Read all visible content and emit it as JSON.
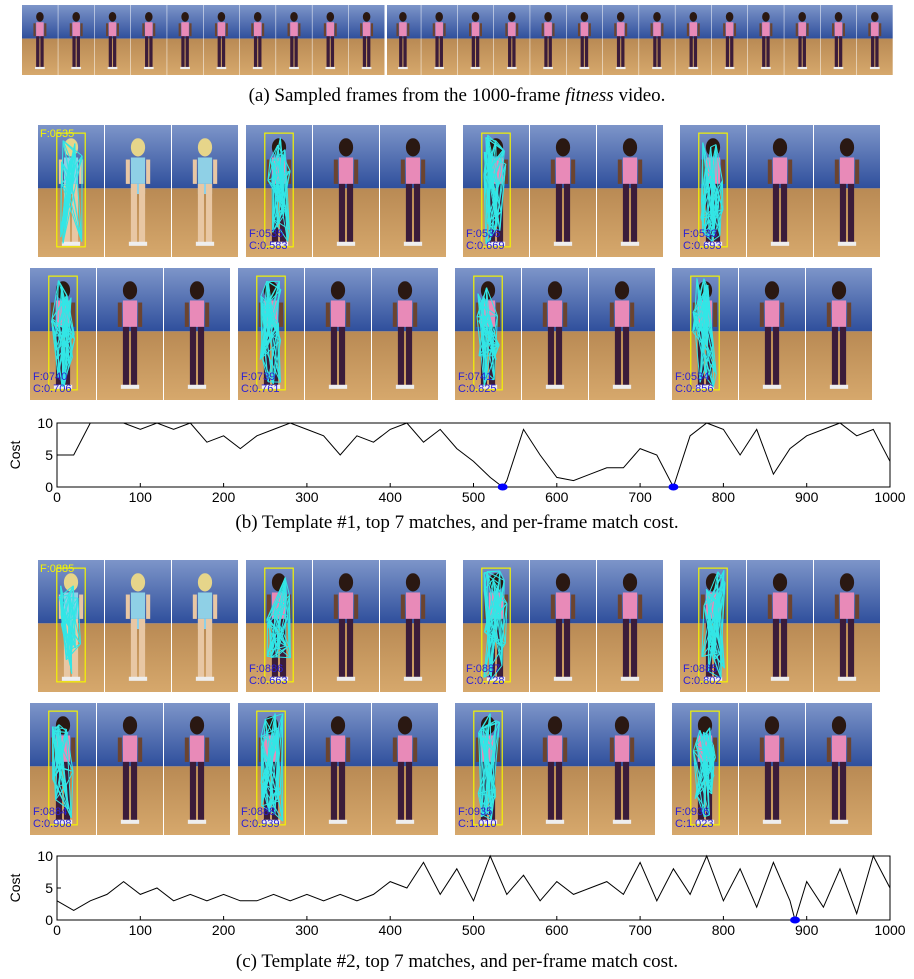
{
  "caption_a": {
    "before": "(a) Sampled frames from the 1000-frame ",
    "em": "fitness",
    "after": " video."
  },
  "panels": [
    {
      "template_label": "F:0535",
      "matches": [
        {
          "frame": "F:0535",
          "cost": "C:0.583"
        },
        {
          "frame": "F:0536",
          "cost": "C:0.669"
        },
        {
          "frame": "F:0533",
          "cost": "C:0.693"
        },
        {
          "frame": "F:0740",
          "cost": "C:0.706"
        },
        {
          "frame": "F:0739",
          "cost": "C:0.761"
        },
        {
          "frame": "F:0741",
          "cost": "C:0.825"
        },
        {
          "frame": "F:0534",
          "cost": "C:0.856"
        }
      ],
      "caption": "(b) Template #1, top 7 matches, and per-frame match cost.",
      "chart_data": {
        "type": "line",
        "ylabel": "Cost",
        "xlim": [
          0,
          1000
        ],
        "ylim": [
          0,
          10
        ],
        "xticks": [
          0,
          100,
          200,
          300,
          400,
          500,
          600,
          700,
          800,
          900,
          1000
        ],
        "yticks": [
          0,
          5,
          10
        ],
        "series": [
          {
            "color": "#000000",
            "x": [
              0,
              20,
              40,
              60,
              80,
              100,
              120,
              140,
              160,
              180,
              200,
              220,
              240,
              260,
              280,
              300,
              320,
              340,
              360,
              380,
              400,
              420,
              440,
              460,
              480,
              500,
              520,
              535,
              540,
              560,
              580,
              600,
              620,
              640,
              660,
              680,
              700,
              720,
              740,
              760,
              780,
              800,
              820,
              840,
              860,
              880,
              900,
              920,
              940,
              960,
              980,
              1000
            ],
            "values": [
              5,
              5,
              10,
              10,
              10,
              9,
              10,
              9,
              10,
              7,
              8,
              6,
              8,
              9,
              10,
              9,
              8,
              5,
              8,
              7,
              9,
              10,
              7,
              9,
              6,
              4,
              1.5,
              0,
              1,
              9,
              5,
              1.5,
              1,
              2,
              3,
              3,
              6,
              5,
              0,
              8,
              10,
              9,
              5,
              9,
              2,
              6,
              8,
              9,
              10,
              8,
              9,
              4
            ]
          }
        ],
        "markers": {
          "color": "#0000ff",
          "x": [
            535,
            740
          ],
          "values": [
            0,
            0
          ]
        }
      }
    },
    {
      "template_label": "F:0885",
      "matches": [
        {
          "frame": "F:0886",
          "cost": "C:0.663"
        },
        {
          "frame": "F:0887",
          "cost": "C:0.728"
        },
        {
          "frame": "F:0885",
          "cost": "C:0.802"
        },
        {
          "frame": "F:0884",
          "cost": "C:0.908"
        },
        {
          "frame": "F:0888",
          "cost": "C:0.939"
        },
        {
          "frame": "F:0935",
          "cost": "C:1.010"
        },
        {
          "frame": "F:0936",
          "cost": "C:1.023"
        }
      ],
      "caption": "(c) Template #2, top 7 matches, and per-frame match cost.",
      "chart_data": {
        "type": "line",
        "ylabel": "Cost",
        "xlim": [
          0,
          1000
        ],
        "ylim": [
          0,
          10
        ],
        "xticks": [
          0,
          100,
          200,
          300,
          400,
          500,
          600,
          700,
          800,
          900,
          1000
        ],
        "yticks": [
          0,
          5,
          10
        ],
        "series": [
          {
            "color": "#000000",
            "x": [
              0,
              20,
              40,
              60,
              80,
              100,
              120,
              140,
              160,
              180,
              200,
              220,
              240,
              260,
              280,
              300,
              320,
              340,
              360,
              380,
              400,
              420,
              440,
              460,
              480,
              500,
              520,
              540,
              560,
              580,
              600,
              620,
              640,
              660,
              680,
              700,
              720,
              740,
              760,
              780,
              800,
              820,
              840,
              860,
              880,
              886,
              900,
              920,
              940,
              960,
              980,
              1000
            ],
            "values": [
              3,
              1.5,
              3,
              4,
              6,
              4,
              5,
              3,
              4,
              3,
              4,
              3,
              3,
              4,
              3,
              4,
              3,
              4,
              3,
              4,
              6,
              5,
              9,
              4,
              8,
              3,
              10,
              4,
              7,
              3,
              6,
              4,
              5,
              6,
              4,
              9,
              3,
              8,
              4,
              10,
              3,
              8,
              2,
              9,
              3,
              0,
              6,
              2,
              8,
              1,
              10,
              5
            ]
          }
        ],
        "markers": {
          "color": "#0000ff",
          "x": [
            886
          ],
          "values": [
            0
          ]
        }
      }
    }
  ]
}
